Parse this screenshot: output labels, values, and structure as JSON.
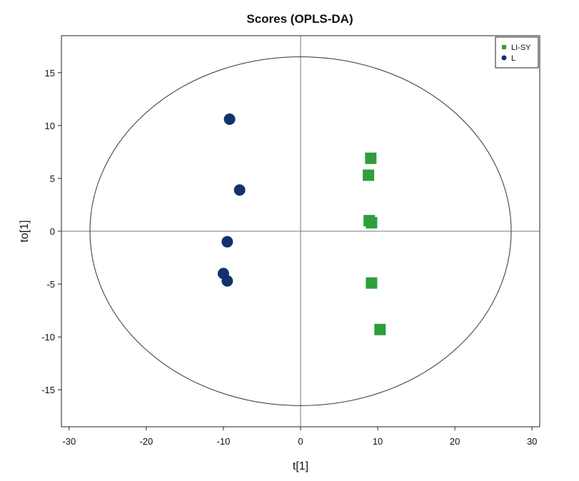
{
  "chart_data": {
    "type": "scatter",
    "title": "Scores (OPLS-DA)",
    "xlabel": "t[1]",
    "ylabel": "to[1]",
    "xlim": [
      -31,
      31
    ],
    "ylim": [
      -18.5,
      18.5
    ],
    "xticks": [
      -30,
      -20,
      -10,
      0,
      10,
      20,
      30
    ],
    "yticks": [
      -15,
      -10,
      -5,
      0,
      5,
      10,
      15
    ],
    "legend_position": "top-right",
    "grid": false,
    "zero_lines": true,
    "ellipse": {
      "center": [
        0,
        0
      ],
      "rx": 27.3,
      "ry": 16.5
    },
    "series": [
      {
        "name": "LI-SY",
        "color": "#2e9e3e",
        "marker": "square",
        "points": [
          {
            "x": 9.1,
            "y": 6.9
          },
          {
            "x": 8.8,
            "y": 5.3
          },
          {
            "x": 8.9,
            "y": 1.0
          },
          {
            "x": 9.2,
            "y": 0.8
          },
          {
            "x": 9.2,
            "y": -4.9
          },
          {
            "x": 10.3,
            "y": -9.3
          }
        ]
      },
      {
        "name": "L",
        "color": "#13316e",
        "marker": "circle",
        "points": [
          {
            "x": -9.2,
            "y": 10.6
          },
          {
            "x": -7.9,
            "y": 3.9
          },
          {
            "x": -9.5,
            "y": -1.0
          },
          {
            "x": -10.0,
            "y": -4.0
          },
          {
            "x": -9.5,
            "y": -4.7
          }
        ]
      }
    ]
  }
}
